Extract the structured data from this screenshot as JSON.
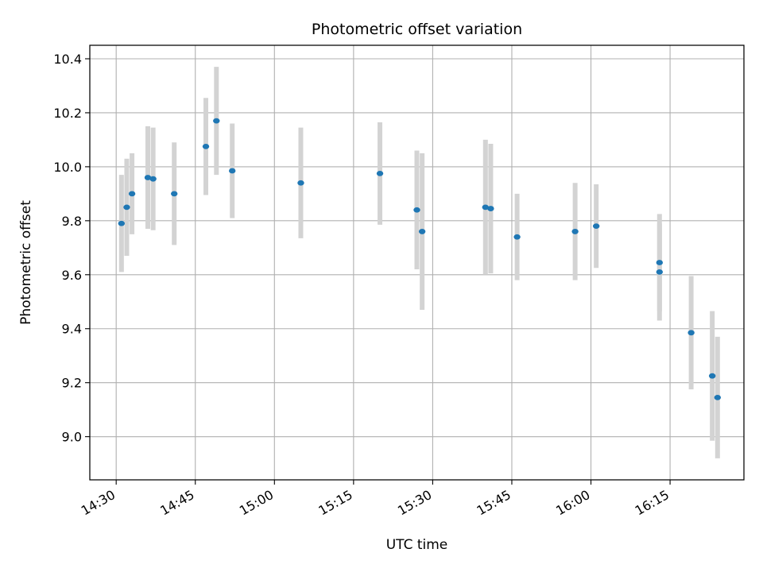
{
  "chart_data": {
    "type": "scatter",
    "title": "Photometric offset variation",
    "xlabel": "UTC time",
    "ylabel": "Photometric offset",
    "xlim": [
      "14:25",
      "16:29"
    ],
    "ylim": [
      8.84,
      10.45
    ],
    "grid": true,
    "x_ticks": [
      "14:30",
      "14:45",
      "15:00",
      "15:15",
      "15:30",
      "15:45",
      "16:00",
      "16:15"
    ],
    "y_ticks": [
      9.0,
      9.2,
      9.4,
      9.6,
      9.8,
      10.0,
      10.2,
      10.4
    ],
    "y_tick_labels": [
      "9.0",
      "9.2",
      "9.4",
      "9.6",
      "9.8",
      "10.0",
      "10.2",
      "10.4"
    ],
    "colors": {
      "point": "#1f77b4",
      "errorbar": "#d3d3d3",
      "grid": "#b0b0b0"
    },
    "series": [
      {
        "points": [
          {
            "x": "14:31",
            "y": 9.79,
            "yerr": 0.18
          },
          {
            "x": "14:32",
            "y": 9.85,
            "yerr": 0.18
          },
          {
            "x": "14:33",
            "y": 9.9,
            "yerr": 0.15
          },
          {
            "x": "14:36",
            "y": 9.96,
            "yerr": 0.19
          },
          {
            "x": "14:37",
            "y": 9.955,
            "yerr": 0.19
          },
          {
            "x": "14:41",
            "y": 9.9,
            "yerr": 0.19
          },
          {
            "x": "14:47",
            "y": 10.075,
            "yerr": 0.18
          },
          {
            "x": "14:49",
            "y": 10.17,
            "yerr": 0.2
          },
          {
            "x": "14:52",
            "y": 9.985,
            "yerr": 0.175
          },
          {
            "x": "15:05",
            "y": 9.94,
            "yerr": 0.205
          },
          {
            "x": "15:20",
            "y": 9.975,
            "yerr": 0.19
          },
          {
            "x": "15:27",
            "y": 9.84,
            "yerr": 0.22
          },
          {
            "x": "15:28",
            "y": 9.76,
            "yerr": 0.29
          },
          {
            "x": "15:40",
            "y": 9.85,
            "yerr": 0.25
          },
          {
            "x": "15:41",
            "y": 9.845,
            "yerr": 0.24
          },
          {
            "x": "15:46",
            "y": 9.74,
            "yerr": 0.16
          },
          {
            "x": "15:57",
            "y": 9.76,
            "yerr": 0.18
          },
          {
            "x": "16:01",
            "y": 9.78,
            "yerr": 0.155
          },
          {
            "x": "16:13",
            "y": 9.645,
            "yerr": 0.18
          },
          {
            "x": "16:13",
            "y": 9.61,
            "yerr": 0.18
          },
          {
            "x": "16:19",
            "y": 9.385,
            "yerr": 0.21
          },
          {
            "x": "16:23",
            "y": 9.225,
            "yerr": 0.24
          },
          {
            "x": "16:24",
            "y": 9.145,
            "yerr": 0.225
          }
        ]
      }
    ]
  }
}
